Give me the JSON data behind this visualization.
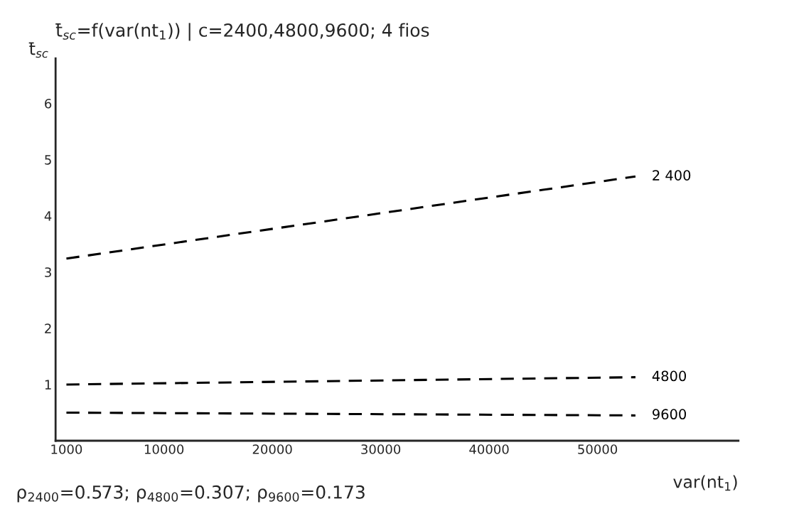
{
  "chart_data": {
    "type": "line",
    "title": "t̄$_{sc}$=f(var(nt$_{1}$)) | c=2400,4800,9600; 4 fios",
    "ylabel": "t̄$_{sc}$",
    "xlabel": "var(nt$_{1}$)",
    "annotations": [
      "ρ$_{2400}$=0.573; ρ$_{4800}$=0.307; ρ$_{9600}$=0.173"
    ],
    "x": [
      1000,
      53500
    ],
    "series": [
      {
        "name": "2 400",
        "color": "#000000",
        "values": [
          3.24,
          4.7
        ]
      },
      {
        "name": "4800",
        "color": "#000000",
        "values": [
          1.0,
          1.13
        ]
      },
      {
        "name": "9600",
        "color": "#000000",
        "values": [
          0.5,
          0.45
        ]
      }
    ],
    "xlim": [
      0,
      63000
    ],
    "ylim": [
      0,
      6.8
    ],
    "xticks": [
      1000,
      10000,
      20000,
      30000,
      40000,
      50000
    ],
    "yticks": [
      1,
      2,
      3,
      4,
      5,
      6
    ],
    "grid": false,
    "legend": false,
    "line_style": "dashed",
    "marker": "none"
  }
}
